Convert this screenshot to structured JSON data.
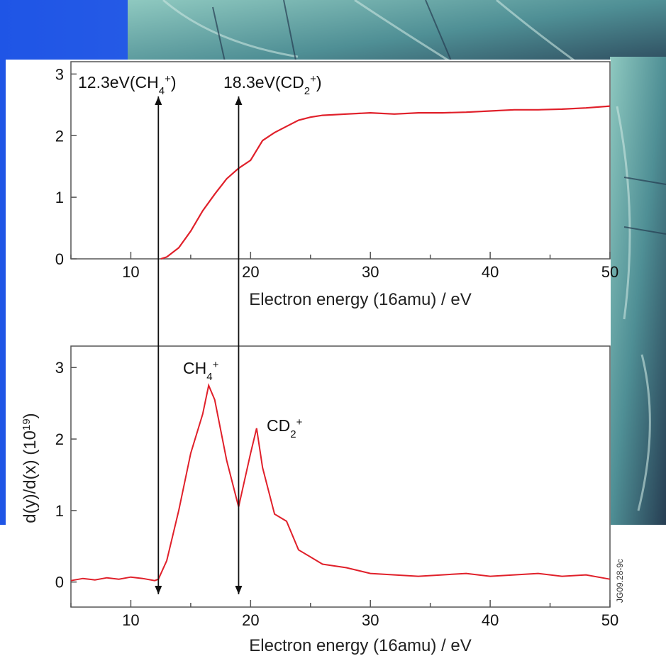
{
  "colors": {
    "background_blue": "#2f5fe0",
    "line_red": "#e0202a",
    "panel_white": "#ffffff",
    "axis_gray": "#555555"
  },
  "figure_code": "JG09.28-9c",
  "chart_data": [
    {
      "type": "line",
      "panel": "top",
      "title": "",
      "xlabel": "Electron energy (16amu) / eV",
      "ylabel": "",
      "xlim": [
        5,
        50
      ],
      "ylim": [
        0,
        3.2
      ],
      "xticks": [
        10,
        20,
        30,
        40,
        50
      ],
      "yticks": [
        0,
        1,
        2,
        3
      ],
      "annotations": [
        {
          "x": 12.3,
          "label": "12.3eV(CH",
          "sub": "4",
          "sup": "+",
          "close": ")"
        },
        {
          "x": 19.0,
          "label": "18.3eV(CD",
          "sub": "2",
          "sup": "+",
          "close": ")"
        }
      ],
      "series": [
        {
          "x": [
            12.5,
            13,
            14,
            15,
            16,
            17,
            18,
            19,
            20,
            21,
            22,
            23,
            24,
            25,
            26,
            28,
            30,
            32,
            34,
            36,
            38,
            40,
            42,
            44,
            46,
            48,
            50
          ],
          "values": [
            0,
            0.03,
            0.18,
            0.45,
            0.78,
            1.05,
            1.3,
            1.47,
            1.6,
            1.92,
            2.05,
            2.15,
            2.25,
            2.3,
            2.33,
            2.35,
            2.37,
            2.35,
            2.37,
            2.37,
            2.38,
            2.4,
            2.42,
            2.42,
            2.43,
            2.45,
            2.48
          ]
        }
      ]
    },
    {
      "type": "line",
      "panel": "bottom",
      "title": "",
      "xlabel": "Electron energy (16amu) / eV",
      "ylabel": "d(y)/d(x) (10",
      "ylabel_sup": "19",
      "ylabel_close": ")",
      "xlim": [
        5,
        50
      ],
      "ylim": [
        -0.35,
        3.3
      ],
      "xticks": [
        10,
        20,
        30,
        40,
        50
      ],
      "yticks": [
        0,
        1,
        2,
        3
      ],
      "annotations": [
        {
          "x": 16.5,
          "y": 2.95,
          "label": "CH",
          "sub": "4",
          "sup": "+"
        },
        {
          "x": 23.0,
          "y": 2.1,
          "label": "CD",
          "sub": "2",
          "sup": "+"
        }
      ],
      "series": [
        {
          "x": [
            5,
            6,
            7,
            8,
            9,
            10,
            11,
            12,
            12.3,
            13,
            14,
            15,
            16,
            16.5,
            17,
            18,
            19,
            20,
            20.5,
            21,
            22,
            23,
            24,
            25,
            26,
            28,
            30,
            32,
            34,
            36,
            38,
            40,
            42,
            44,
            46,
            48,
            50
          ],
          "values": [
            0.02,
            0.05,
            0.03,
            0.06,
            0.04,
            0.07,
            0.05,
            0.02,
            0.04,
            0.3,
            1.0,
            1.8,
            2.35,
            2.75,
            2.55,
            1.7,
            1.05,
            1.8,
            2.15,
            1.6,
            0.95,
            0.85,
            0.45,
            0.35,
            0.25,
            0.2,
            0.12,
            0.1,
            0.08,
            0.1,
            0.12,
            0.08,
            0.1,
            0.12,
            0.08,
            0.1,
            0.04
          ]
        }
      ]
    }
  ]
}
